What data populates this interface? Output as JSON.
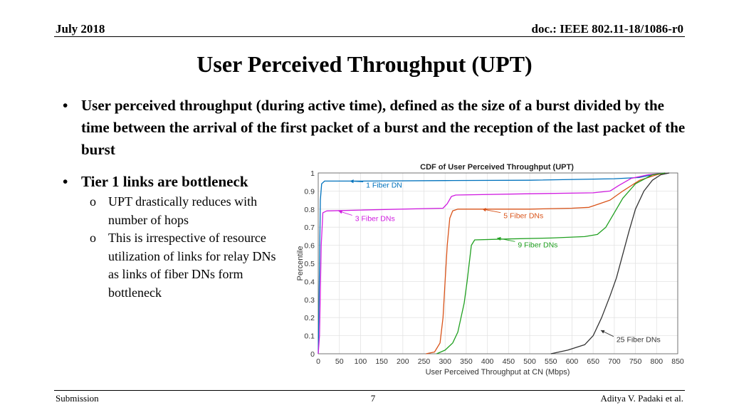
{
  "header": {
    "date": "July  2018",
    "doc_id": "doc.: IEEE 802.11-18/1086-r0"
  },
  "title": "User Perceived Throughput (UPT)",
  "bullets": [
    {
      "text": "User perceived throughput (during active time), defined as the size of a burst divided by the time between the arrival of the first packet of a burst and the reception of the last packet of the burst"
    },
    {
      "text": "Tier 1 links are bottleneck",
      "subitems": [
        "UPT drastically reduces with number of hops",
        "This is irrespective of resource utilization of links for relay DNs as links of fiber DNs form bottleneck"
      ]
    }
  ],
  "bullet_glyph": "•",
  "sub_glyph": "o",
  "footer": {
    "left": "Submission",
    "page": "7",
    "author": "Aditya V. Padaki et al."
  },
  "chart_data": {
    "type": "line",
    "title": "CDF of User Perceived Throughput (UPT)",
    "xlabel": "User Perceived Throughput at CN (Mbps)",
    "ylabel": "Percentile",
    "xlim": [
      0,
      850
    ],
    "ylim": [
      0,
      1
    ],
    "xticks": [
      0,
      50,
      100,
      150,
      200,
      250,
      300,
      350,
      400,
      450,
      500,
      550,
      600,
      650,
      700,
      750,
      800,
      850
    ],
    "yticks": [
      0,
      0.1,
      0.2,
      0.3,
      0.4,
      0.5,
      0.6,
      0.7,
      0.8,
      0.9,
      1
    ],
    "ytick_labels": [
      "0",
      "0.1",
      "0.2",
      "0.3",
      "0.4",
      "0.5",
      "0.6",
      "0.7",
      "0.8",
      "0.9",
      "1"
    ],
    "grid": true,
    "series": [
      {
        "name": "1 Fiber DN",
        "color": "#0072BD",
        "points": [
          [
            0,
            0
          ],
          [
            2,
            0.3
          ],
          [
            5,
            0.85
          ],
          [
            8,
            0.94
          ],
          [
            15,
            0.955
          ],
          [
            100,
            0.955
          ],
          [
            300,
            0.958
          ],
          [
            500,
            0.96
          ],
          [
            700,
            0.968
          ],
          [
            760,
            0.975
          ],
          [
            790,
            0.99
          ],
          [
            820,
            1.0
          ]
        ],
        "annotation": {
          "arrow_at": [
            75,
            0.955
          ],
          "label_at": [
            113,
            0.935
          ]
        }
      },
      {
        "name": "3 Fiber DNs",
        "color": "#D01CE0",
        "points": [
          [
            0,
            0
          ],
          [
            3,
            0.1
          ],
          [
            7,
            0.6
          ],
          [
            11,
            0.78
          ],
          [
            20,
            0.79
          ],
          [
            100,
            0.795
          ],
          [
            295,
            0.805
          ],
          [
            305,
            0.83
          ],
          [
            315,
            0.87
          ],
          [
            325,
            0.878
          ],
          [
            500,
            0.885
          ],
          [
            650,
            0.89
          ],
          [
            690,
            0.9
          ],
          [
            710,
            0.93
          ],
          [
            740,
            0.97
          ],
          [
            780,
            0.99
          ],
          [
            820,
            1.0
          ]
        ],
        "annotation": {
          "arrow_at": [
            48,
            0.79
          ],
          "label_at": [
            87,
            0.75
          ]
        }
      },
      {
        "name": "5 Fiber DNs",
        "color": "#D95319",
        "points": [
          [
            255,
            0
          ],
          [
            275,
            0.01
          ],
          [
            288,
            0.06
          ],
          [
            295,
            0.2
          ],
          [
            300,
            0.4
          ],
          [
            305,
            0.6
          ],
          [
            311,
            0.75
          ],
          [
            318,
            0.79
          ],
          [
            330,
            0.8
          ],
          [
            500,
            0.8
          ],
          [
            600,
            0.805
          ],
          [
            640,
            0.81
          ],
          [
            665,
            0.83
          ],
          [
            690,
            0.85
          ],
          [
            720,
            0.9
          ],
          [
            760,
            0.96
          ],
          [
            800,
            0.99
          ],
          [
            820,
            1.0
          ]
        ],
        "annotation": {
          "arrow_at": [
            388,
            0.8
          ],
          "label_at": [
            438,
            0.765
          ]
        }
      },
      {
        "name": "9 Fiber DNs",
        "color": "#20A020",
        "points": [
          [
            280,
            0
          ],
          [
            300,
            0.02
          ],
          [
            318,
            0.06
          ],
          [
            330,
            0.12
          ],
          [
            345,
            0.28
          ],
          [
            352,
            0.4
          ],
          [
            357,
            0.5
          ],
          [
            362,
            0.6
          ],
          [
            370,
            0.63
          ],
          [
            450,
            0.635
          ],
          [
            550,
            0.64
          ],
          [
            630,
            0.648
          ],
          [
            660,
            0.66
          ],
          [
            680,
            0.7
          ],
          [
            700,
            0.78
          ],
          [
            720,
            0.86
          ],
          [
            750,
            0.94
          ],
          [
            790,
            0.99
          ],
          [
            820,
            1.0
          ]
        ],
        "annotation": {
          "arrow_at": [
            423,
            0.64
          ],
          "label_at": [
            472,
            0.605
          ]
        }
      },
      {
        "name": "25 Fiber DNs",
        "color": "#333333",
        "points": [
          [
            550,
            0
          ],
          [
            590,
            0.02
          ],
          [
            630,
            0.05
          ],
          [
            650,
            0.1
          ],
          [
            670,
            0.2
          ],
          [
            690,
            0.32
          ],
          [
            705,
            0.42
          ],
          [
            720,
            0.55
          ],
          [
            735,
            0.68
          ],
          [
            750,
            0.8
          ],
          [
            770,
            0.9
          ],
          [
            790,
            0.96
          ],
          [
            810,
            0.99
          ],
          [
            830,
            1.0
          ]
        ],
        "annotation": {
          "arrow_at": [
            668,
            0.13
          ],
          "label_at": [
            705,
            0.08
          ]
        }
      }
    ]
  }
}
